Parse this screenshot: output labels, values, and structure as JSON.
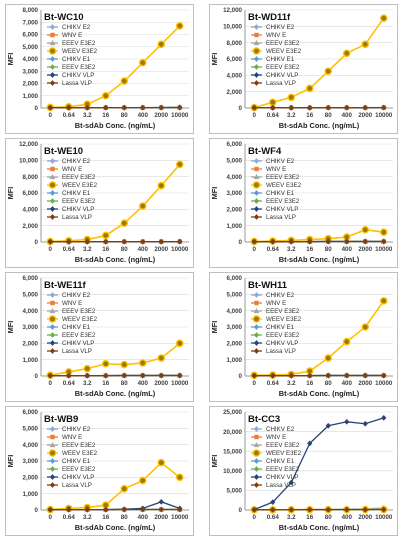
{
  "x_ticks": [
    "0",
    "0.64",
    "3.2",
    "16",
    "80",
    "400",
    "2000",
    "10000"
  ],
  "series_style": [
    {
      "name": "CHIKV E2",
      "color": "#8ea9db",
      "marker": "diamond",
      "fill": "#8ea9db"
    },
    {
      "name": "WNV E",
      "color": "#ed7d31",
      "marker": "square",
      "fill": "#ed7d31"
    },
    {
      "name": "EEEV E3E2",
      "color": "#a5a5a5",
      "marker": "triangle",
      "fill": "#a5a5a5"
    },
    {
      "name": "WEEV E3E2",
      "color": "#ffc000",
      "marker": "circle",
      "fill": "#9c7a00"
    },
    {
      "name": "CHIKV E1",
      "color": "#5b9bd5",
      "marker": "diamond",
      "fill": "#5b9bd5"
    },
    {
      "name": "EEEV E3E2",
      "color": "#70ad47",
      "marker": "diamond",
      "fill": "#70ad47"
    },
    {
      "name": "CHIKV VLP",
      "color": "#264478",
      "marker": "diamond",
      "fill": "#264478"
    },
    {
      "name": "Lassa VLP",
      "color": "#843c0c",
      "marker": "diamond",
      "fill": "#843c0c"
    }
  ],
  "chart_data": [
    {
      "type": "line",
      "title": "Bt-WC10",
      "xlabel": "Bt-sdAb Conc. (ng/mL)",
      "ylabel": "MFI",
      "ylim": [
        0,
        8000
      ],
      "yticks": [
        0,
        1000,
        2000,
        3000,
        4000,
        5000,
        6000,
        7000,
        8000
      ],
      "categories": [
        "0",
        "0.64",
        "3.2",
        "16",
        "80",
        "400",
        "2000",
        "10000"
      ],
      "legend": "top-left",
      "grid": true,
      "series": [
        {
          "name": "CHIKV E2",
          "values": [
            20,
            20,
            20,
            30,
            30,
            30,
            40,
            50
          ]
        },
        {
          "name": "WNV E",
          "values": [
            20,
            20,
            20,
            30,
            30,
            30,
            30,
            40
          ]
        },
        {
          "name": "EEEV E3E2",
          "values": [
            20,
            20,
            20,
            30,
            30,
            30,
            30,
            40
          ]
        },
        {
          "name": "WEEV E3E2",
          "values": [
            50,
            100,
            300,
            1000,
            2200,
            3700,
            5200,
            6700
          ]
        },
        {
          "name": "CHIKV E1",
          "values": [
            20,
            20,
            20,
            30,
            30,
            30,
            30,
            40
          ]
        },
        {
          "name": "EEEV E3E2",
          "values": [
            20,
            20,
            20,
            30,
            30,
            30,
            30,
            40
          ]
        },
        {
          "name": "CHIKV VLP",
          "values": [
            20,
            20,
            20,
            30,
            30,
            30,
            40,
            40
          ]
        },
        {
          "name": "Lassa VLP",
          "values": [
            20,
            20,
            20,
            30,
            30,
            30,
            30,
            40
          ]
        }
      ]
    },
    {
      "type": "line",
      "title": "Bt-WD11f",
      "xlabel": "Bt-sdAb Conc. (ng/mL)",
      "ylabel": "MFI",
      "ylim": [
        0,
        12000
      ],
      "yticks": [
        0,
        2000,
        4000,
        6000,
        8000,
        10000,
        12000
      ],
      "categories": [
        "0",
        "0.64",
        "3.2",
        "16",
        "80",
        "400",
        "2000",
        "10000"
      ],
      "legend": "top-left",
      "grid": true,
      "series": [
        {
          "name": "CHIKV E2",
          "values": [
            30,
            30,
            30,
            40,
            40,
            40,
            50,
            60
          ]
        },
        {
          "name": "WNV E",
          "values": [
            30,
            30,
            30,
            30,
            40,
            40,
            40,
            50
          ]
        },
        {
          "name": "EEEV E3E2",
          "values": [
            30,
            30,
            30,
            30,
            40,
            40,
            40,
            50
          ]
        },
        {
          "name": "WEEV E3E2",
          "values": [
            50,
            700,
            1300,
            2400,
            4500,
            6700,
            7800,
            11000
          ]
        },
        {
          "name": "CHIKV E1",
          "values": [
            30,
            30,
            30,
            30,
            40,
            40,
            40,
            50
          ]
        },
        {
          "name": "EEEV E3E2",
          "values": [
            30,
            30,
            30,
            30,
            40,
            40,
            40,
            50
          ]
        },
        {
          "name": "CHIKV VLP",
          "values": [
            30,
            30,
            30,
            30,
            40,
            40,
            40,
            50
          ]
        },
        {
          "name": "Lassa VLP",
          "values": [
            30,
            30,
            30,
            30,
            40,
            40,
            40,
            50
          ]
        }
      ]
    },
    {
      "type": "line",
      "title": "Bt-WE10",
      "xlabel": "Bt-sdAb Conc. (ng/mL)",
      "ylabel": "MFI",
      "ylim": [
        0,
        12000
      ],
      "yticks": [
        0,
        2000,
        4000,
        6000,
        8000,
        10000,
        12000
      ],
      "categories": [
        "0",
        "0.64",
        "3.2",
        "16",
        "80",
        "400",
        "2000",
        "10000"
      ],
      "legend": "top-left",
      "grid": true,
      "series": [
        {
          "name": "CHIKV E2",
          "values": [
            30,
            30,
            30,
            40,
            40,
            40,
            50,
            60
          ]
        },
        {
          "name": "WNV E",
          "values": [
            30,
            30,
            30,
            30,
            40,
            40,
            40,
            50
          ]
        },
        {
          "name": "EEEV E3E2",
          "values": [
            30,
            30,
            30,
            30,
            40,
            40,
            40,
            50
          ]
        },
        {
          "name": "WEEV E3E2",
          "values": [
            60,
            150,
            300,
            800,
            2300,
            4400,
            6900,
            9500
          ]
        },
        {
          "name": "CHIKV E1",
          "values": [
            30,
            30,
            30,
            30,
            40,
            40,
            40,
            50
          ]
        },
        {
          "name": "EEEV E3E2",
          "values": [
            30,
            30,
            30,
            30,
            40,
            40,
            40,
            50
          ]
        },
        {
          "name": "CHIKV VLP",
          "values": [
            30,
            30,
            30,
            30,
            40,
            40,
            40,
            50
          ]
        },
        {
          "name": "Lassa VLP",
          "values": [
            30,
            30,
            30,
            30,
            40,
            40,
            40,
            50
          ]
        }
      ]
    },
    {
      "type": "line",
      "title": "Bt-WF4",
      "xlabel": "Bt-sdAb Conc. (ng/mL)",
      "ylabel": "MFI",
      "ylim": [
        0,
        6000
      ],
      "yticks": [
        0,
        1000,
        2000,
        3000,
        4000,
        5000,
        6000
      ],
      "categories": [
        "0",
        "0.64",
        "3.2",
        "16",
        "80",
        "400",
        "2000",
        "10000"
      ],
      "legend": "top-left",
      "grid": true,
      "series": [
        {
          "name": "CHIKV E2",
          "values": [
            20,
            20,
            20,
            30,
            30,
            30,
            40,
            40
          ]
        },
        {
          "name": "WNV E",
          "values": [
            20,
            20,
            20,
            20,
            30,
            30,
            30,
            30
          ]
        },
        {
          "name": "EEEV E3E2",
          "values": [
            20,
            20,
            20,
            20,
            30,
            30,
            30,
            30
          ]
        },
        {
          "name": "WEEV E3E2",
          "values": [
            30,
            60,
            100,
            150,
            200,
            300,
            750,
            600
          ]
        },
        {
          "name": "CHIKV E1",
          "values": [
            20,
            20,
            20,
            20,
            30,
            30,
            30,
            30
          ]
        },
        {
          "name": "EEEV E3E2",
          "values": [
            20,
            20,
            20,
            20,
            30,
            30,
            30,
            30
          ]
        },
        {
          "name": "CHIKV VLP",
          "values": [
            20,
            20,
            20,
            20,
            30,
            30,
            30,
            30
          ]
        },
        {
          "name": "Lassa VLP",
          "values": [
            20,
            20,
            20,
            20,
            30,
            30,
            30,
            30
          ]
        }
      ]
    },
    {
      "type": "line",
      "title": "Bt-WE11f",
      "xlabel": "Bt-sdAb Conc. (ng/mL)",
      "ylabel": "MFI",
      "ylim": [
        0,
        6000
      ],
      "yticks": [
        0,
        1000,
        2000,
        3000,
        4000,
        5000,
        6000
      ],
      "categories": [
        "0",
        "0.64",
        "3.2",
        "16",
        "80",
        "400",
        "2000",
        "10000"
      ],
      "legend": "top-left",
      "grid": true,
      "series": [
        {
          "name": "CHIKV E2",
          "values": [
            20,
            20,
            20,
            30,
            30,
            30,
            40,
            40
          ]
        },
        {
          "name": "WNV E",
          "values": [
            20,
            20,
            20,
            20,
            30,
            30,
            30,
            30
          ]
        },
        {
          "name": "EEEV E3E2",
          "values": [
            20,
            20,
            20,
            20,
            30,
            30,
            30,
            30
          ]
        },
        {
          "name": "WEEV E3E2",
          "values": [
            50,
            250,
            450,
            750,
            700,
            800,
            1100,
            2000
          ]
        },
        {
          "name": "CHIKV E1",
          "values": [
            20,
            20,
            20,
            20,
            30,
            30,
            30,
            30
          ]
        },
        {
          "name": "EEEV E3E2",
          "values": [
            20,
            20,
            20,
            20,
            30,
            30,
            30,
            30
          ]
        },
        {
          "name": "CHIKV VLP",
          "values": [
            20,
            20,
            20,
            20,
            30,
            30,
            30,
            30
          ]
        },
        {
          "name": "Lassa VLP",
          "values": [
            20,
            20,
            20,
            20,
            30,
            30,
            30,
            30
          ]
        }
      ]
    },
    {
      "type": "line",
      "title": "Bt-WH11",
      "xlabel": "Bt-sdAb Conc. (ng/mL)",
      "ylabel": "MFI",
      "ylim": [
        0,
        6000
      ],
      "yticks": [
        0,
        1000,
        2000,
        3000,
        4000,
        5000,
        6000
      ],
      "categories": [
        "0",
        "0.64",
        "3.2",
        "16",
        "80",
        "400",
        "2000",
        "10000"
      ],
      "legend": "top-left",
      "grid": true,
      "series": [
        {
          "name": "CHIKV E2",
          "values": [
            20,
            20,
            20,
            30,
            30,
            30,
            40,
            40
          ]
        },
        {
          "name": "WNV E",
          "values": [
            20,
            20,
            20,
            20,
            30,
            30,
            30,
            30
          ]
        },
        {
          "name": "EEEV E3E2",
          "values": [
            20,
            20,
            20,
            20,
            30,
            30,
            30,
            30
          ]
        },
        {
          "name": "WEEV E3E2",
          "values": [
            40,
            60,
            100,
            300,
            1100,
            2100,
            3000,
            4600
          ]
        },
        {
          "name": "CHIKV E1",
          "values": [
            20,
            20,
            20,
            20,
            30,
            30,
            30,
            30
          ]
        },
        {
          "name": "EEEV E3E2",
          "values": [
            20,
            20,
            20,
            20,
            30,
            30,
            30,
            30
          ]
        },
        {
          "name": "CHIKV VLP",
          "values": [
            20,
            20,
            20,
            20,
            30,
            30,
            30,
            30
          ]
        },
        {
          "name": "Lassa VLP",
          "values": [
            20,
            20,
            20,
            20,
            30,
            30,
            30,
            30
          ]
        }
      ]
    },
    {
      "type": "line",
      "title": "Bt-WB9",
      "xlabel": "Bt-sdAb Conc. (ng/mL)",
      "ylabel": "MFI",
      "ylim": [
        0,
        6000
      ],
      "yticks": [
        0,
        1000,
        2000,
        3000,
        4000,
        5000,
        6000
      ],
      "categories": [
        "0",
        "0.64",
        "3.2",
        "16",
        "80",
        "400",
        "2000",
        "10000"
      ],
      "legend": "top-left",
      "grid": true,
      "series": [
        {
          "name": "CHIKV E2",
          "values": [
            20,
            20,
            20,
            30,
            30,
            30,
            40,
            40
          ]
        },
        {
          "name": "WNV E",
          "values": [
            20,
            20,
            20,
            20,
            30,
            30,
            30,
            30
          ]
        },
        {
          "name": "EEEV E3E2",
          "values": [
            20,
            20,
            20,
            20,
            30,
            30,
            30,
            30
          ]
        },
        {
          "name": "WEEV E3E2",
          "values": [
            30,
            100,
            150,
            300,
            1300,
            1800,
            2900,
            2000
          ]
        },
        {
          "name": "CHIKV E1",
          "values": [
            20,
            20,
            20,
            20,
            30,
            30,
            30,
            30
          ]
        },
        {
          "name": "EEEV E3E2",
          "values": [
            20,
            20,
            20,
            20,
            30,
            30,
            30,
            30
          ]
        },
        {
          "name": "CHIKV VLP",
          "values": [
            20,
            20,
            20,
            20,
            50,
            100,
            500,
            100
          ]
        },
        {
          "name": "Lassa VLP",
          "values": [
            20,
            20,
            20,
            20,
            30,
            30,
            30,
            30
          ]
        }
      ]
    },
    {
      "type": "line",
      "title": "Bt-CC3",
      "xlabel": "Bt-sdAb Conc. (ng/mL)",
      "ylabel": "MFI",
      "ylim": [
        0,
        25000
      ],
      "yticks": [
        0,
        5000,
        10000,
        15000,
        20000,
        25000
      ],
      "categories": [
        "0",
        "0.64",
        "3.2",
        "16",
        "80",
        "400",
        "2000",
        "10000"
      ],
      "legend": "top-left",
      "grid": true,
      "series": [
        {
          "name": "CHIKV E2",
          "values": [
            50,
            100,
            100,
            150,
            200,
            250,
            300,
            500
          ]
        },
        {
          "name": "WNV E",
          "values": [
            50,
            60,
            60,
            80,
            80,
            90,
            100,
            120
          ]
        },
        {
          "name": "EEEV E3E2",
          "values": [
            50,
            60,
            60,
            80,
            80,
            90,
            100,
            120
          ]
        },
        {
          "name": "WEEV E3E2",
          "values": [
            50,
            60,
            60,
            80,
            80,
            90,
            100,
            120
          ]
        },
        {
          "name": "CHIKV E1",
          "values": [
            50,
            60,
            60,
            80,
            80,
            90,
            100,
            120
          ]
        },
        {
          "name": "EEEV E3E2",
          "values": [
            50,
            60,
            60,
            80,
            80,
            90,
            100,
            120
          ]
        },
        {
          "name": "CHIKV VLP",
          "values": [
            100,
            2000,
            7000,
            17000,
            21500,
            22500,
            22000,
            23500
          ]
        },
        {
          "name": "Lassa VLP",
          "values": [
            50,
            60,
            60,
            80,
            80,
            90,
            100,
            120
          ]
        }
      ]
    }
  ]
}
